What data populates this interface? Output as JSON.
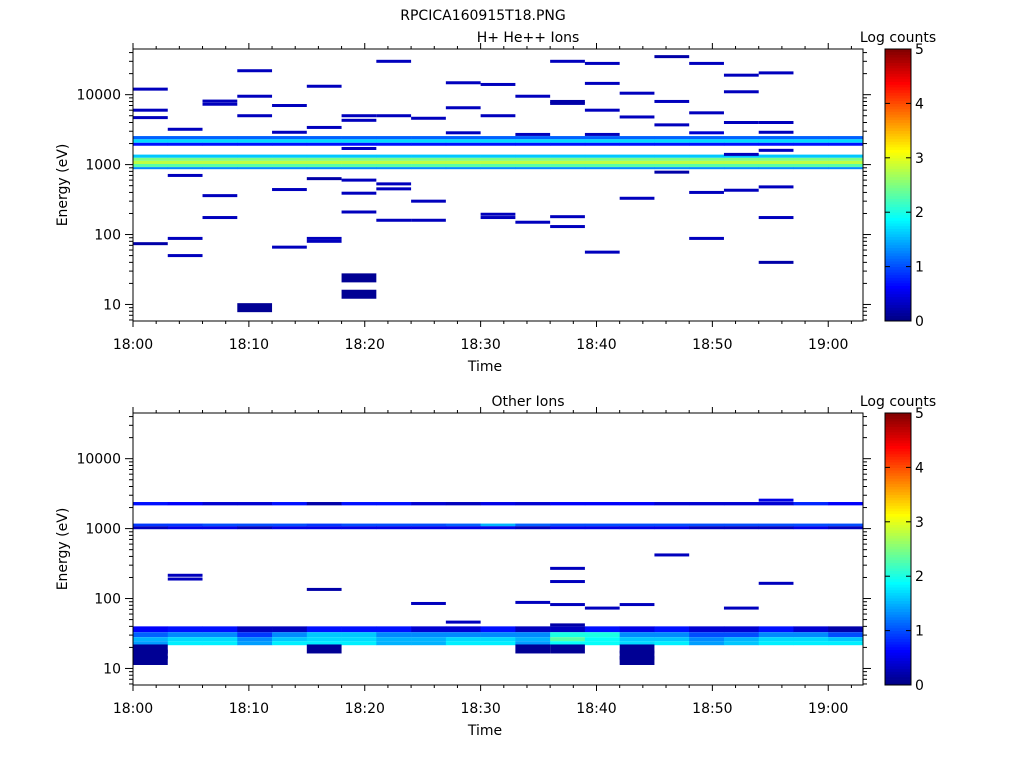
{
  "figure": {
    "title": "RPCICA160915T18.PNG"
  },
  "chart_data": [
    {
      "type": "heatmap",
      "title": "H+ He++ Ions",
      "xlabel": "Time",
      "ylabel": "Energy (eV)",
      "x_range": [
        "18:00",
        "19:03"
      ],
      "y_range": [
        5.8,
        45000
      ],
      "y_scale": "log",
      "x_ticks": [
        "18:00",
        "18:10",
        "18:20",
        "18:30",
        "18:40",
        "18:50",
        "19:00"
      ],
      "y_ticks": [
        "10",
        "100",
        "1000",
        "10000"
      ],
      "colorbar": {
        "label": "Log counts",
        "min": 0,
        "max": 5,
        "ticks": [
          "0",
          "1",
          "2",
          "3",
          "4",
          "5"
        ]
      },
      "time_bins": [
        "18:00",
        "18:03",
        "18:06",
        "18:09",
        "18:12",
        "18:15",
        "18:18",
        "18:21",
        "18:24",
        "18:27",
        "18:30",
        "18:33",
        "18:36",
        "18:39",
        "18:42",
        "18:45",
        "18:48",
        "18:51",
        "18:54",
        "18:57",
        "19:00"
      ],
      "bands": [
        {
          "e_low": 2300,
          "e_high": 2560,
          "values": [
            1.1,
            1.1,
            1.1,
            1.1,
            1.1,
            1.1,
            1.1,
            1.1,
            1.1,
            1.1,
            1.1,
            1.1,
            1.1,
            1.1,
            1.1,
            1.1,
            1.1,
            1.1,
            1.1,
            1.1,
            1.1
          ]
        },
        {
          "e_low": 2050,
          "e_high": 2300,
          "values": [
            1.7,
            1.7,
            1.7,
            1.7,
            1.7,
            1.7,
            1.7,
            1.7,
            1.7,
            1.7,
            1.7,
            1.7,
            1.7,
            1.7,
            1.7,
            1.7,
            1.7,
            1.7,
            1.7,
            1.7,
            1.7
          ]
        },
        {
          "e_low": 1860,
          "e_high": 2050,
          "values": [
            0.7,
            0.7,
            0.7,
            0.7,
            0.7,
            0.7,
            0.7,
            0.7,
            0.7,
            0.7,
            0.7,
            0.7,
            0.7,
            0.7,
            0.7,
            0.7,
            0.7,
            0.7,
            0.7,
            0.7,
            0.7
          ]
        },
        {
          "e_low": 1250,
          "e_high": 1390,
          "values": [
            1.6,
            1.6,
            1.6,
            1.6,
            1.6,
            1.6,
            1.6,
            1.6,
            1.6,
            1.6,
            1.6,
            1.6,
            1.6,
            1.6,
            1.6,
            1.6,
            1.6,
            1.6,
            1.6,
            1.6,
            1.6
          ]
        },
        {
          "e_low": 1130,
          "e_high": 1250,
          "values": [
            2.5,
            2.5,
            2.5,
            2.5,
            2.5,
            2.5,
            2.5,
            2.5,
            2.5,
            2.5,
            2.5,
            2.5,
            2.5,
            2.5,
            2.5,
            2.5,
            2.5,
            2.5,
            2.5,
            2.5,
            2.5
          ]
        },
        {
          "e_low": 1020,
          "e_high": 1130,
          "values": [
            2.8,
            2.8,
            2.8,
            2.8,
            2.8,
            2.8,
            2.8,
            2.8,
            2.8,
            2.8,
            2.8,
            2.8,
            2.8,
            2.8,
            2.8,
            2.8,
            2.8,
            2.8,
            2.8,
            2.8,
            2.8
          ]
        },
        {
          "e_low": 920,
          "e_high": 1020,
          "values": [
            2.3,
            2.3,
            2.3,
            2.3,
            2.3,
            2.3,
            2.3,
            2.3,
            2.3,
            2.3,
            2.3,
            2.3,
            2.3,
            2.3,
            2.3,
            2.3,
            2.3,
            2.3,
            2.3,
            2.3,
            2.3
          ]
        },
        {
          "e_low": 860,
          "e_high": 920,
          "values": [
            1.3,
            1.3,
            1.3,
            1.3,
            1.3,
            1.3,
            1.3,
            1.3,
            1.3,
            1.3,
            1.3,
            1.3,
            1.3,
            1.3,
            1.3,
            1.3,
            1.3,
            1.3,
            1.3,
            1.3,
            1.3
          ]
        }
      ],
      "cells": [
        {
          "t": 0,
          "e": 12000,
          "v": 0.3
        },
        {
          "t": 0,
          "e": 6000,
          "v": 0.3
        },
        {
          "t": 0,
          "e": 4700,
          "v": 0.3
        },
        {
          "t": 0,
          "e": 74,
          "v": 0.2
        },
        {
          "t": 1,
          "e": 3200,
          "v": 0.3
        },
        {
          "t": 1,
          "e": 700,
          "v": 0.3
        },
        {
          "t": 1,
          "e": 88,
          "v": 0.3
        },
        {
          "t": 1,
          "e": 50,
          "v": 0.3
        },
        {
          "t": 2,
          "e": 8100,
          "v": 0.3
        },
        {
          "t": 2,
          "e": 7300,
          "v": 0.3
        },
        {
          "t": 2,
          "e": 360,
          "v": 0.3
        },
        {
          "t": 2,
          "e": 175,
          "v": 0.3
        },
        {
          "t": 3,
          "e": 22000,
          "v": 0.3
        },
        {
          "t": 3,
          "e": 9500,
          "v": 0.3
        },
        {
          "t": 3,
          "e": 5000,
          "v": 0.3
        },
        {
          "t": 3,
          "e": 9,
          "v": 0.1
        },
        {
          "t": 4,
          "e": 7000,
          "v": 0.3
        },
        {
          "t": 4,
          "e": 2900,
          "v": 0.3
        },
        {
          "t": 4,
          "e": 440,
          "v": 0.3
        },
        {
          "t": 4,
          "e": 66,
          "v": 0.3
        },
        {
          "t": 5,
          "e": 13200,
          "v": 0.3
        },
        {
          "t": 5,
          "e": 3400,
          "v": 0.3
        },
        {
          "t": 5,
          "e": 630,
          "v": 0.2
        },
        {
          "t": 5,
          "e": 88,
          "v": 0.3
        },
        {
          "t": 5,
          "e": 80,
          "v": 0.3
        },
        {
          "t": 6,
          "e": 5000,
          "v": 0.3
        },
        {
          "t": 6,
          "e": 4300,
          "v": 0.3
        },
        {
          "t": 6,
          "e": 1700,
          "v": 0.3
        },
        {
          "t": 6,
          "e": 600,
          "v": 0.3
        },
        {
          "t": 6,
          "e": 390,
          "v": 0.3
        },
        {
          "t": 6,
          "e": 210,
          "v": 0.3
        },
        {
          "t": 6,
          "e": 24,
          "v": 0.1
        },
        {
          "t": 6,
          "e": 14,
          "v": 0.1
        },
        {
          "t": 7,
          "e": 30000,
          "v": 0.3
        },
        {
          "t": 7,
          "e": 5000,
          "v": 0.3
        },
        {
          "t": 7,
          "e": 530,
          "v": 0.3
        },
        {
          "t": 7,
          "e": 450,
          "v": 0.3
        },
        {
          "t": 7,
          "e": 160,
          "v": 0.3
        },
        {
          "t": 8,
          "e": 4600,
          "v": 0.3
        },
        {
          "t": 8,
          "e": 300,
          "v": 0.3
        },
        {
          "t": 8,
          "e": 160,
          "v": 0.3
        },
        {
          "t": 9,
          "e": 14800,
          "v": 0.3
        },
        {
          "t": 9,
          "e": 6500,
          "v": 0.3
        },
        {
          "t": 9,
          "e": 2850,
          "v": 0.3
        },
        {
          "t": 10,
          "e": 14000,
          "v": 0.3
        },
        {
          "t": 10,
          "e": 5000,
          "v": 0.3
        },
        {
          "t": 10,
          "e": 195,
          "v": 0.3
        },
        {
          "t": 10,
          "e": 175,
          "v": 0.3
        },
        {
          "t": 11,
          "e": 9500,
          "v": 0.3
        },
        {
          "t": 11,
          "e": 2700,
          "v": 0.3
        },
        {
          "t": 11,
          "e": 150,
          "v": 0.3
        },
        {
          "t": 12,
          "e": 30000,
          "v": 0.3
        },
        {
          "t": 12,
          "e": 8000,
          "v": 0.2
        },
        {
          "t": 12,
          "e": 7500,
          "v": 0.2
        },
        {
          "t": 12,
          "e": 180,
          "v": 0.3
        },
        {
          "t": 12,
          "e": 130,
          "v": 0.3
        },
        {
          "t": 13,
          "e": 28000,
          "v": 0.3
        },
        {
          "t": 13,
          "e": 14500,
          "v": 0.3
        },
        {
          "t": 13,
          "e": 6000,
          "v": 0.3
        },
        {
          "t": 13,
          "e": 2700,
          "v": 0.3
        },
        {
          "t": 13,
          "e": 56,
          "v": 0.3
        },
        {
          "t": 14,
          "e": 10500,
          "v": 0.3
        },
        {
          "t": 14,
          "e": 4800,
          "v": 0.3
        },
        {
          "t": 14,
          "e": 330,
          "v": 0.3
        },
        {
          "t": 15,
          "e": 35000,
          "v": 0.2
        },
        {
          "t": 15,
          "e": 8000,
          "v": 0.3
        },
        {
          "t": 15,
          "e": 3700,
          "v": 0.3
        },
        {
          "t": 15,
          "e": 780,
          "v": 0.2
        },
        {
          "t": 16,
          "e": 28000,
          "v": 0.3
        },
        {
          "t": 16,
          "e": 5500,
          "v": 0.3
        },
        {
          "t": 16,
          "e": 2850,
          "v": 0.4
        },
        {
          "t": 16,
          "e": 400,
          "v": 0.3
        },
        {
          "t": 16,
          "e": 88,
          "v": 0.3
        },
        {
          "t": 17,
          "e": 19000,
          "v": 0.3
        },
        {
          "t": 17,
          "e": 11000,
          "v": 0.3
        },
        {
          "t": 17,
          "e": 4000,
          "v": 0.3
        },
        {
          "t": 17,
          "e": 430,
          "v": 0.3
        },
        {
          "t": 17,
          "e": 1400,
          "v": 0.3
        },
        {
          "t": 18,
          "e": 20500,
          "v": 0.3
        },
        {
          "t": 18,
          "e": 4000,
          "v": 0.3
        },
        {
          "t": 18,
          "e": 2900,
          "v": 0.3
        },
        {
          "t": 18,
          "e": 1600,
          "v": 0.3
        },
        {
          "t": 18,
          "e": 480,
          "v": 0.3
        },
        {
          "t": 18,
          "e": 175,
          "v": 0.3
        },
        {
          "t": 18,
          "e": 40,
          "v": 0.2
        }
      ]
    },
    {
      "type": "heatmap",
      "title": "Other Ions",
      "xlabel": "Time",
      "ylabel": "Energy (eV)",
      "x_range": [
        "18:00",
        "19:03"
      ],
      "y_range": [
        5.8,
        45000
      ],
      "y_scale": "log",
      "x_ticks": [
        "18:00",
        "18:10",
        "18:20",
        "18:30",
        "18:40",
        "18:50",
        "19:00"
      ],
      "y_ticks": [
        "10",
        "100",
        "1000",
        "10000"
      ],
      "colorbar": {
        "label": "Log counts",
        "min": 0,
        "max": 5,
        "ticks": [
          "0",
          "1",
          "2",
          "3",
          "4",
          "5"
        ]
      },
      "time_bins": [
        "18:00",
        "18:03",
        "18:06",
        "18:09",
        "18:12",
        "18:15",
        "18:18",
        "18:21",
        "18:24",
        "18:27",
        "18:30",
        "18:33",
        "18:36",
        "18:39",
        "18:42",
        "18:45",
        "18:48",
        "18:51",
        "18:54",
        "18:57",
        "19:00"
      ],
      "bands": [
        {
          "e_low": 2150,
          "e_high": 2400,
          "values": [
            0.7,
            0.6,
            0.4,
            0.4,
            0.7,
            0.2,
            0.7,
            0.7,
            0.4,
            0.3,
            0.5,
            0.4,
            0.6,
            0.6,
            0.6,
            0.4,
            0.4,
            0.4,
            0.4,
            0.8,
            0.6
          ]
        },
        {
          "e_low": 1080,
          "e_high": 1180,
          "values": [
            0.9,
            0.9,
            1.0,
            1.0,
            1.0,
            0.9,
            1.0,
            1.0,
            1.0,
            1.1,
            1.5,
            1.1,
            1.0,
            1.0,
            1.0,
            1.0,
            1.0,
            1.0,
            1.0,
            1.0,
            1.0
          ]
        },
        {
          "e_low": 980,
          "e_high": 1080,
          "values": [
            0.3,
            0.5,
            0.5,
            0.3,
            0.5,
            0.5,
            0.5,
            0.5,
            0.5,
            0.5,
            0.5,
            0.3,
            0.5,
            0.5,
            0.5,
            0.5,
            0.3,
            0.3,
            0.3,
            0.5,
            0.3
          ]
        },
        {
          "e_low": 33,
          "e_high": 40,
          "values": [
            0.6,
            0.7,
            0.7,
            0.3,
            0.3,
            0.7,
            0.7,
            0.7,
            0.4,
            0.4,
            0.7,
            0.3,
            0.3,
            0.7,
            0.5,
            0.7,
            0.4,
            0.4,
            0.7,
            0.4,
            0.2
          ]
        },
        {
          "e_low": 28,
          "e_high": 33,
          "values": [
            1.1,
            1.3,
            1.3,
            0.9,
            1.3,
            1.6,
            1.6,
            1.3,
            1.3,
            1.3,
            1.3,
            1.3,
            2.0,
            2.0,
            1.3,
            1.3,
            1.0,
            1.0,
            1.3,
            1.3,
            1.0
          ]
        },
        {
          "e_low": 24.5,
          "e_high": 28,
          "values": [
            1.5,
            1.7,
            1.7,
            1.3,
            1.6,
            1.7,
            1.7,
            1.5,
            1.5,
            1.7,
            1.7,
            1.5,
            2.3,
            1.9,
            1.6,
            1.6,
            1.3,
            1.5,
            1.7,
            1.7,
            1.6
          ]
        },
        {
          "e_low": 21.5,
          "e_high": 24.5,
          "values": [
            1.4,
            1.8,
            1.8,
            1.4,
            1.8,
            1.8,
            1.8,
            1.5,
            1.5,
            1.8,
            1.8,
            1.4,
            1.9,
            1.9,
            1.7,
            1.8,
            1.4,
            1.6,
            1.8,
            1.8,
            1.8
          ]
        }
      ],
      "cells": [
        {
          "t": 0,
          "e": 19,
          "v": 0.1
        },
        {
          "t": 0,
          "e": 16,
          "v": 0.1
        },
        {
          "t": 0,
          "e": 13,
          "v": 0.1
        },
        {
          "t": 1,
          "e": 215,
          "v": 0.3
        },
        {
          "t": 1,
          "e": 190,
          "v": 0.3
        },
        {
          "t": 5,
          "e": 135,
          "v": 0.2
        },
        {
          "t": 5,
          "e": 19,
          "v": 0.1
        },
        {
          "t": 8,
          "e": 85,
          "v": 0.3
        },
        {
          "t": 9,
          "e": 46,
          "v": 0.3
        },
        {
          "t": 11,
          "e": 88,
          "v": 0.3
        },
        {
          "t": 11,
          "e": 19,
          "v": 0.1
        },
        {
          "t": 12,
          "e": 270,
          "v": 0.3
        },
        {
          "t": 12,
          "e": 175,
          "v": 0.3
        },
        {
          "t": 12,
          "e": 82,
          "v": 0.3
        },
        {
          "t": 12,
          "e": 42,
          "v": 0.2
        },
        {
          "t": 12,
          "e": 19,
          "v": 0.1
        },
        {
          "t": 13,
          "e": 73,
          "v": 0.3
        },
        {
          "t": 14,
          "e": 82,
          "v": 0.3
        },
        {
          "t": 14,
          "e": 19,
          "v": 0.1
        },
        {
          "t": 14,
          "e": 15.5,
          "v": 0.1
        },
        {
          "t": 14,
          "e": 13,
          "v": 0.1
        },
        {
          "t": 15,
          "e": 420,
          "v": 0.3
        },
        {
          "t": 17,
          "e": 73,
          "v": 0.3
        },
        {
          "t": 18,
          "e": 2550,
          "v": 0.5
        },
        {
          "t": 18,
          "e": 165,
          "v": 0.3
        }
      ]
    }
  ]
}
